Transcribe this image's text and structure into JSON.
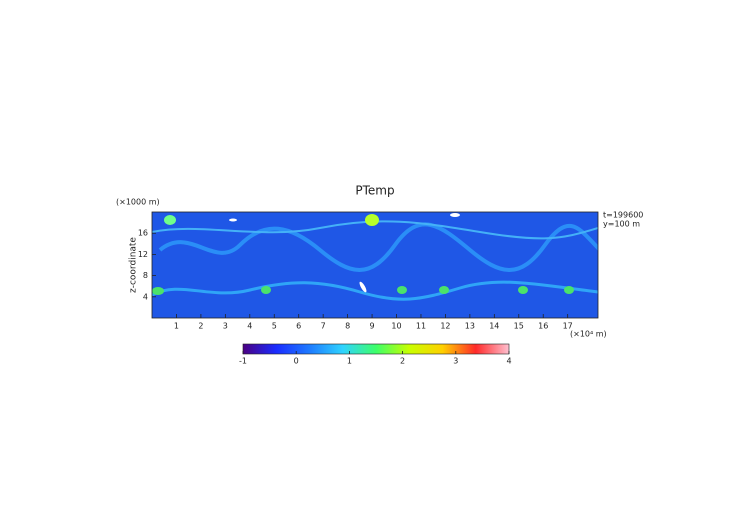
{
  "chart_data": {
    "type": "heatmap",
    "title": "PTemp",
    "y_unit_label": "(×1000 m)",
    "ylabel": "z-coordinate",
    "x_unit_label": "(×10⁴ m)",
    "annotations": [
      "t=199600",
      "y=100 m"
    ],
    "xlim": [
      0,
      18.24
    ],
    "xticks": [
      1,
      2,
      3,
      4,
      5,
      6,
      7,
      8,
      9,
      10,
      11,
      12,
      13,
      14,
      15,
      16,
      17
    ],
    "ylim": [
      0,
      20
    ],
    "yticks": [
      4,
      8,
      12,
      16
    ],
    "colorbar": {
      "lim": [
        -1,
        4
      ],
      "ticks": [
        -1,
        0,
        1,
        2,
        3,
        4
      ],
      "colors": [
        "#4b0082",
        "#1a2cff",
        "#1e7bff",
        "#2fd3ff",
        "#3dff6a",
        "#c8ff00",
        "#ffd000",
        "#ff2a2a",
        "#ffc0d0"
      ]
    }
  }
}
